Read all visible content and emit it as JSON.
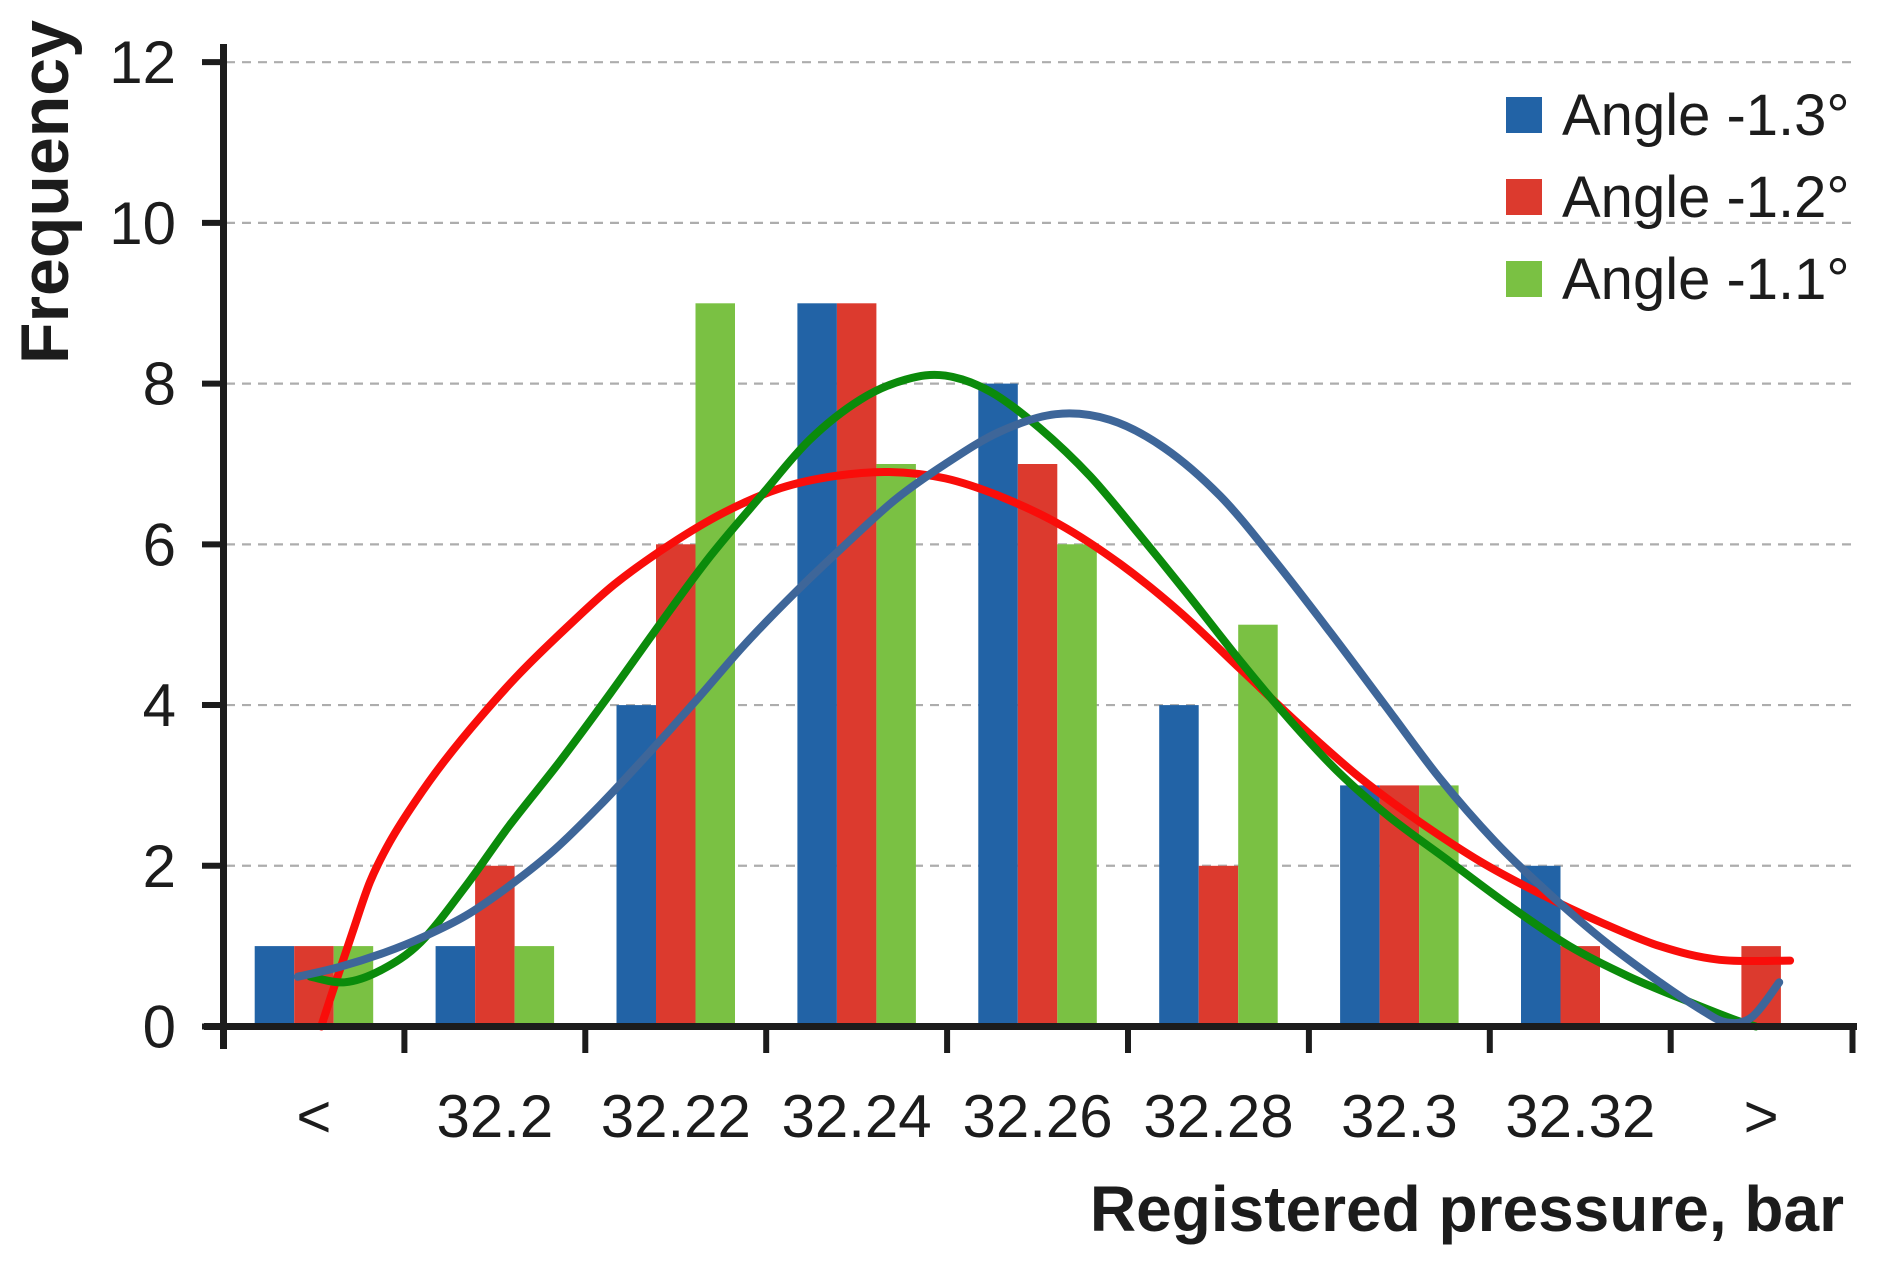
{
  "page": {
    "background": "#ffffff"
  },
  "chart_data": {
    "type": "bar",
    "title": "",
    "xlabel": "Registered pressure, bar",
    "ylabel": "Frequency",
    "categories": [
      "<",
      "32.2",
      "32.22",
      "32.24",
      "32.26",
      "32.28",
      "32.3",
      "32.32",
      ">"
    ],
    "y_ticks": [
      0,
      2,
      4,
      6,
      8,
      10,
      12
    ],
    "ylim": [
      0,
      12
    ],
    "grid": {
      "horizontal": true,
      "style": "dashed",
      "color": "#adadad"
    },
    "legend_position": "top-right",
    "series": [
      {
        "name": "Angle -1.3°",
        "color": "#2263A6",
        "values": [
          1,
          1,
          4,
          9,
          8,
          4,
          3,
          2,
          0
        ]
      },
      {
        "name": "Angle -1.2°",
        "color": "#DC3A2E",
        "values": [
          1,
          2,
          6,
          9,
          7,
          2,
          3,
          1,
          1
        ]
      },
      {
        "name": "Angle -1.1°",
        "color": "#7AC143",
        "values": [
          1,
          1,
          9,
          7,
          6,
          5,
          3,
          0,
          0
        ]
      }
    ],
    "fit_curves": [
      {
        "series": "Angle -1.2°",
        "color": "#F90D0A",
        "points": [
          [
            0.54,
            0
          ],
          [
            0.62,
            0.55
          ],
          [
            0.71,
            1.15
          ],
          [
            0.81,
            1.8
          ],
          [
            0.92,
            2.3
          ],
          [
            1.06,
            2.8
          ],
          [
            1.22,
            3.3
          ],
          [
            1.42,
            3.85
          ],
          [
            1.64,
            4.4
          ],
          [
            1.89,
            4.95
          ],
          [
            2.16,
            5.5
          ],
          [
            2.47,
            6.0
          ],
          [
            2.77,
            6.4
          ],
          [
            3.08,
            6.7
          ],
          [
            3.38,
            6.85
          ],
          [
            3.68,
            6.9
          ],
          [
            3.99,
            6.82
          ],
          [
            4.29,
            6.6
          ],
          [
            4.62,
            6.25
          ],
          [
            4.96,
            5.75
          ],
          [
            5.29,
            5.15
          ],
          [
            5.62,
            4.45
          ],
          [
            5.95,
            3.75
          ],
          [
            6.28,
            3.1
          ],
          [
            6.61,
            2.55
          ],
          [
            6.95,
            2.05
          ],
          [
            7.28,
            1.65
          ],
          [
            7.61,
            1.3
          ],
          [
            7.94,
            1.0
          ],
          [
            8.27,
            0.83
          ],
          [
            8.66,
            0.82
          ]
        ]
      },
      {
        "series": "Angle -1.1°",
        "color": "#0B8B0B",
        "points": [
          [
            0.48,
            0.62
          ],
          [
            0.67,
            0.55
          ],
          [
            0.87,
            0.7
          ],
          [
            1.09,
            1.05
          ],
          [
            1.34,
            1.75
          ],
          [
            1.58,
            2.5
          ],
          [
            1.86,
            3.3
          ],
          [
            2.14,
            4.15
          ],
          [
            2.41,
            5.0
          ],
          [
            2.69,
            5.85
          ],
          [
            2.97,
            6.6
          ],
          [
            3.24,
            7.3
          ],
          [
            3.52,
            7.8
          ],
          [
            3.77,
            8.05
          ],
          [
            3.99,
            8.1
          ],
          [
            4.24,
            7.9
          ],
          [
            4.51,
            7.45
          ],
          [
            4.79,
            6.85
          ],
          [
            5.07,
            6.1
          ],
          [
            5.34,
            5.35
          ],
          [
            5.62,
            4.55
          ],
          [
            5.9,
            3.8
          ],
          [
            6.17,
            3.15
          ],
          [
            6.45,
            2.6
          ],
          [
            6.78,
            2.05
          ],
          [
            7.11,
            1.5
          ],
          [
            7.44,
            1.0
          ],
          [
            7.77,
            0.62
          ],
          [
            8.11,
            0.3
          ],
          [
            8.36,
            0.08
          ],
          [
            8.47,
            0.0
          ]
        ]
      },
      {
        "series": "Angle -1.3°",
        "color": "#3E6699",
        "points": [
          [
            0.41,
            0.62
          ],
          [
            0.64,
            0.74
          ],
          [
            0.89,
            0.92
          ],
          [
            1.11,
            1.12
          ],
          [
            1.34,
            1.38
          ],
          [
            1.58,
            1.75
          ],
          [
            1.83,
            2.2
          ],
          [
            2.08,
            2.75
          ],
          [
            2.33,
            3.35
          ],
          [
            2.61,
            4.05
          ],
          [
            2.88,
            4.75
          ],
          [
            3.16,
            5.4
          ],
          [
            3.44,
            6.0
          ],
          [
            3.71,
            6.55
          ],
          [
            3.99,
            7.0
          ],
          [
            4.29,
            7.4
          ],
          [
            4.6,
            7.62
          ],
          [
            4.9,
            7.55
          ],
          [
            5.2,
            7.2
          ],
          [
            5.51,
            6.6
          ],
          [
            5.81,
            5.8
          ],
          [
            6.12,
            4.9
          ],
          [
            6.42,
            4.0
          ],
          [
            6.72,
            3.1
          ],
          [
            7.03,
            2.3
          ],
          [
            7.33,
            1.65
          ],
          [
            7.64,
            1.05
          ],
          [
            7.94,
            0.55
          ],
          [
            8.16,
            0.22
          ],
          [
            8.31,
            0.05
          ],
          [
            8.45,
            0.12
          ],
          [
            8.6,
            0.55
          ]
        ]
      }
    ],
    "axes_note": "fit_curves points: x in category-slot units (0 = y-axis line, 1 slot per category), y in frequency units"
  }
}
